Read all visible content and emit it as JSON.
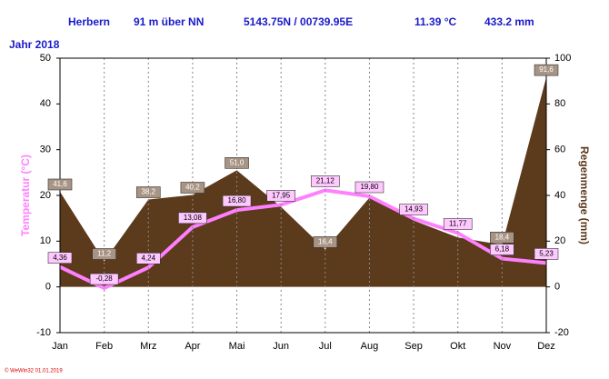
{
  "chart_data": {
    "type": "combo",
    "header": [
      "Herbern",
      "91 m über NN",
      "5143.75N / 00739.95E",
      "11.39 °C",
      "433.2 mm"
    ],
    "year_label": "Jahr 2018",
    "footer": "© WeWin32  01.01.2019",
    "y_label": "Temperatur (°C)",
    "y2_label": "Regenmenge (mm)",
    "categories": [
      "Jan",
      "Feb",
      "Mrz",
      "Apr",
      "Mai",
      "Jun",
      "Jul",
      "Aug",
      "Sep",
      "Okt",
      "Nov",
      "Dez"
    ],
    "ylim": [
      -10,
      50
    ],
    "yticks": [
      -10,
      0,
      10,
      20,
      30,
      40,
      50
    ],
    "y2lim": [
      -20,
      100
    ],
    "y2ticks": [
      -20,
      0,
      20,
      40,
      60,
      80,
      100
    ],
    "grid": true,
    "series": [
      {
        "name": "Regenmenge",
        "type": "area",
        "axis": "y2",
        "color": "#5c3a1c",
        "values": [
          41.6,
          11.2,
          38.2,
          40.2,
          51.0,
          35,
          16.4,
          39,
          29,
          21.6,
          18.4,
          91.6
        ],
        "value_labels": [
          "41,6",
          "11,2",
          "38,2",
          "40,2",
          "51,0",
          null,
          "16,4",
          null,
          null,
          null,
          "18,4",
          "91,6"
        ]
      },
      {
        "name": "Temperatur",
        "type": "line",
        "axis": "y",
        "color": "#ff80ff",
        "values": [
          4.36,
          -0.28,
          4.24,
          13.08,
          16.8,
          17.95,
          21.12,
          19.8,
          14.93,
          11.77,
          6.18,
          5.23
        ],
        "value_labels": [
          "4,36",
          "-0,28",
          "4,24",
          "13,08",
          "16,80",
          "17,95",
          "21,12",
          "19,80",
          "14,93",
          "11,77",
          "6,18",
          "5,23"
        ]
      }
    ]
  }
}
